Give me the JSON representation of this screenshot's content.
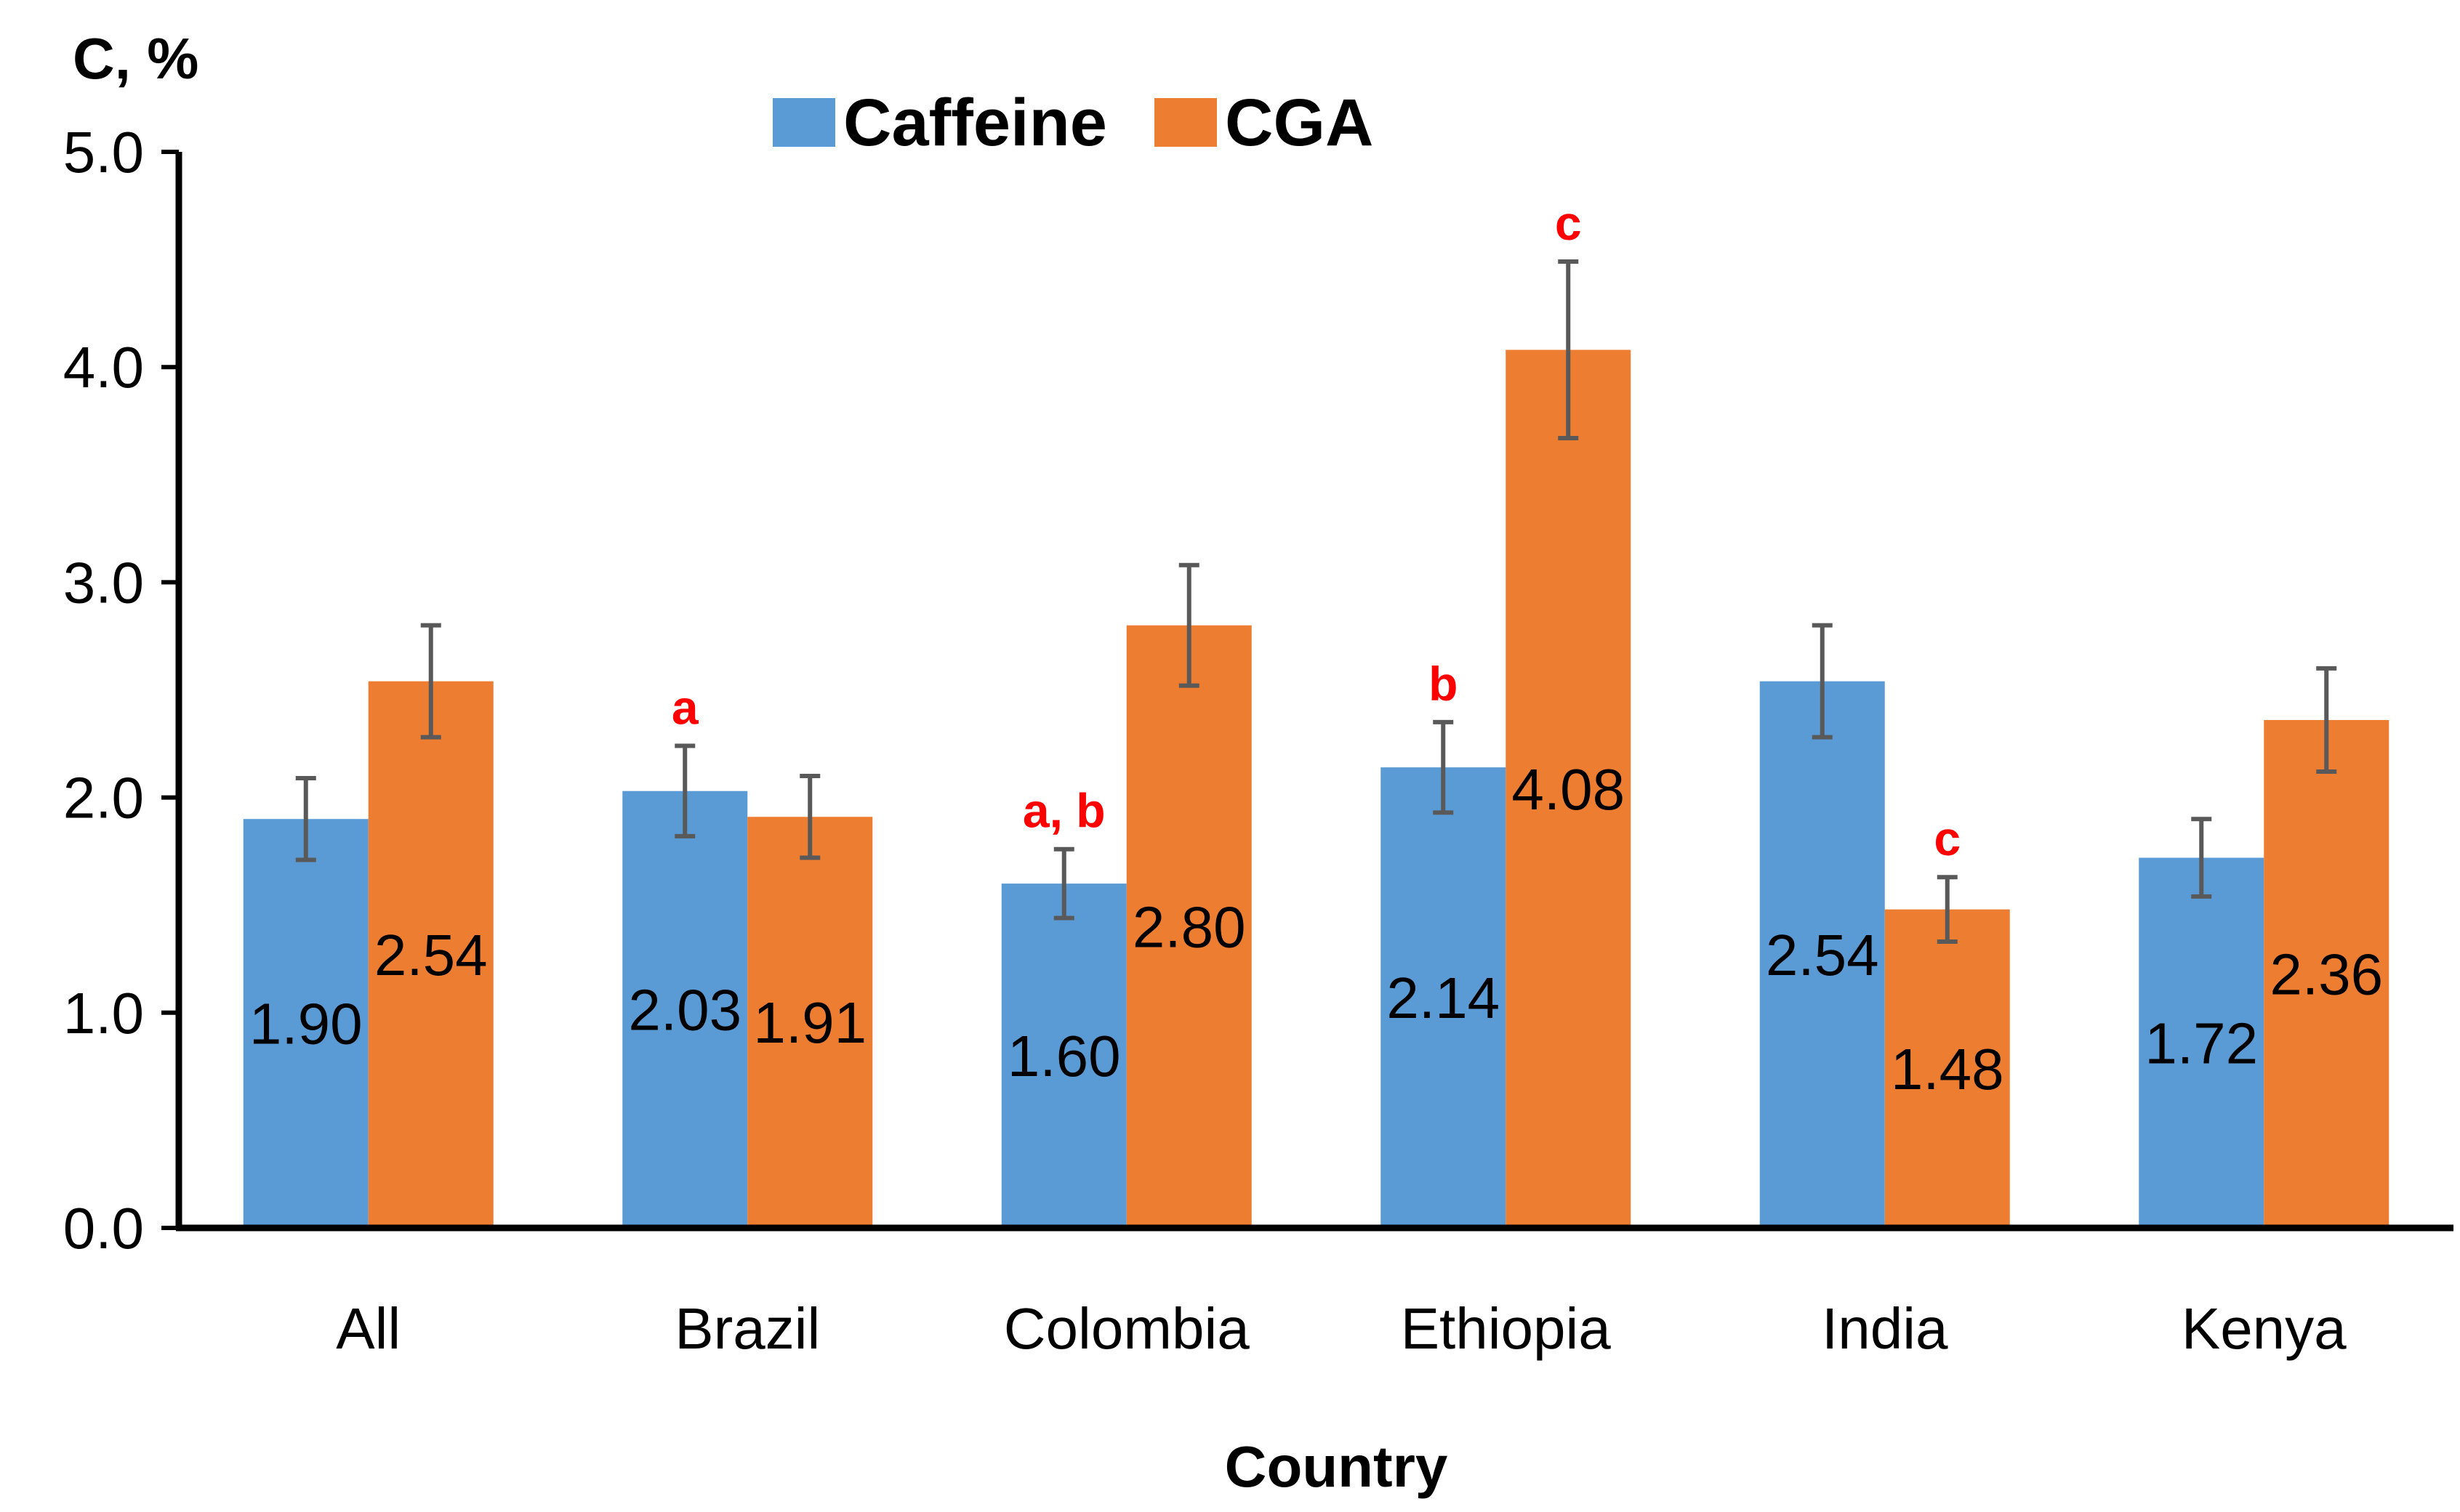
{
  "chart_data": {
    "type": "bar",
    "title": "",
    "xlabel": "Country",
    "ylabel": "C, %",
    "ylim": [
      0,
      5
    ],
    "yticks": [
      0,
      1,
      2,
      3,
      4,
      5
    ],
    "ytick_labels": [
      "0.0",
      "1.0",
      "2.0",
      "3.0",
      "4.0",
      "5.0"
    ],
    "grid": false,
    "legend_position": "top-center",
    "categories": [
      "All",
      "Brazil",
      "Colombia",
      "Ethiopia",
      "India",
      "Kenya"
    ],
    "series": [
      {
        "name": "Caffeine",
        "color": "#5b9bd5",
        "values": [
          1.9,
          2.03,
          1.6,
          2.14,
          2.54,
          1.72
        ],
        "value_labels": [
          "1.90",
          "2.03",
          "1.60",
          "2.14",
          "2.54",
          "1.72"
        ],
        "errors": [
          0.19,
          0.21,
          0.16,
          0.21,
          0.26,
          0.18
        ],
        "significance": [
          "",
          "a",
          "a, b",
          "b",
          "",
          ""
        ]
      },
      {
        "name": "CGA",
        "color": "#ed7d31",
        "values": [
          2.54,
          1.91,
          2.8,
          4.08,
          1.48,
          2.36
        ],
        "value_labels": [
          "2.54",
          "1.91",
          "2.80",
          "4.08",
          "1.48",
          "2.36"
        ],
        "errors": [
          0.26,
          0.19,
          0.28,
          0.41,
          0.15,
          0.24
        ],
        "significance": [
          "",
          "",
          "",
          "c",
          "c",
          ""
        ]
      }
    ],
    "error_bar_color": "#595959",
    "significance_color": "#ff0000"
  }
}
